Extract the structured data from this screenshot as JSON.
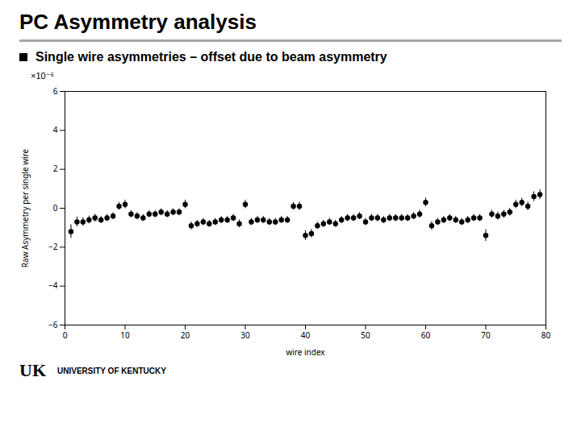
{
  "chart_data": {
    "type": "scatter",
    "title": "PC Asymmetry analysis",
    "subtitle": "Single wire asymmetries – offset due to beam asymmetry",
    "xlabel": "wire index",
    "ylabel": "Raw Asymmetry per single wire",
    "annotations": [
      "×10⁻⁶",
      "UK",
      "UNIVERSITY OF KENTUCKY"
    ],
    "x": [
      1,
      2,
      3,
      4,
      5,
      6,
      7,
      8,
      9,
      10,
      11,
      12,
      13,
      14,
      15,
      16,
      17,
      18,
      19,
      20,
      21,
      22,
      23,
      24,
      25,
      26,
      27,
      28,
      29,
      30,
      31,
      32,
      33,
      34,
      35,
      36,
      37,
      38,
      39,
      40,
      41,
      42,
      43,
      44,
      45,
      46,
      47,
      48,
      49,
      50,
      51,
      52,
      53,
      54,
      55,
      56,
      57,
      58,
      59,
      60,
      61,
      62,
      63,
      64,
      65,
      66,
      67,
      68,
      69,
      70,
      71,
      72,
      73,
      74,
      75,
      76,
      77,
      78,
      79
    ],
    "values": [
      -1.2,
      -0.7,
      -0.7,
      -0.6,
      -0.5,
      -0.6,
      -0.5,
      -0.4,
      0.1,
      0.2,
      -0.3,
      -0.4,
      -0.5,
      -0.3,
      -0.3,
      -0.2,
      -0.3,
      -0.2,
      -0.2,
      0.2,
      -0.9,
      -0.8,
      -0.7,
      -0.8,
      -0.7,
      -0.6,
      -0.6,
      -0.5,
      -0.8,
      0.2,
      -0.7,
      -0.6,
      -0.6,
      -0.7,
      -0.7,
      -0.6,
      -0.6,
      0.1,
      0.1,
      -1.4,
      -1.3,
      -0.9,
      -0.8,
      -0.7,
      -0.8,
      -0.6,
      -0.5,
      -0.5,
      -0.4,
      -0.7,
      -0.5,
      -0.5,
      -0.6,
      -0.5,
      -0.5,
      -0.5,
      -0.5,
      -0.4,
      -0.3,
      0.3,
      -0.9,
      -0.7,
      -0.6,
      -0.5,
      -0.6,
      -0.7,
      -0.6,
      -0.5,
      -0.5,
      -1.4,
      -0.3,
      -0.4,
      -0.3,
      -0.2,
      0.2,
      0.3,
      0.1,
      0.6,
      0.7
    ],
    "errors": [
      0.35,
      0.25,
      0.22,
      0.2,
      0.2,
      0.18,
      0.18,
      0.18,
      0.2,
      0.22,
      0.18,
      0.18,
      0.18,
      0.18,
      0.18,
      0.18,
      0.18,
      0.18,
      0.18,
      0.22,
      0.2,
      0.18,
      0.18,
      0.18,
      0.18,
      0.18,
      0.18,
      0.18,
      0.2,
      0.22,
      0.18,
      0.18,
      0.18,
      0.18,
      0.18,
      0.18,
      0.18,
      0.2,
      0.22,
      0.25,
      0.22,
      0.18,
      0.18,
      0.18,
      0.18,
      0.18,
      0.18,
      0.18,
      0.18,
      0.18,
      0.18,
      0.18,
      0.18,
      0.18,
      0.18,
      0.18,
      0.18,
      0.18,
      0.2,
      0.22,
      0.22,
      0.18,
      0.18,
      0.18,
      0.18,
      0.18,
      0.18,
      0.18,
      0.18,
      0.3,
      0.2,
      0.2,
      0.2,
      0.2,
      0.22,
      0.22,
      0.22,
      0.25,
      0.25
    ],
    "xlim": [
      0,
      80
    ],
    "ylim": [
      -6,
      6
    ],
    "xticks": [
      0,
      10,
      20,
      30,
      40,
      50,
      60,
      70,
      80
    ],
    "yticks": [
      -6,
      -4,
      -2,
      0,
      2,
      4,
      6
    ],
    "color": "black",
    "marker": "circle",
    "grid": false
  }
}
